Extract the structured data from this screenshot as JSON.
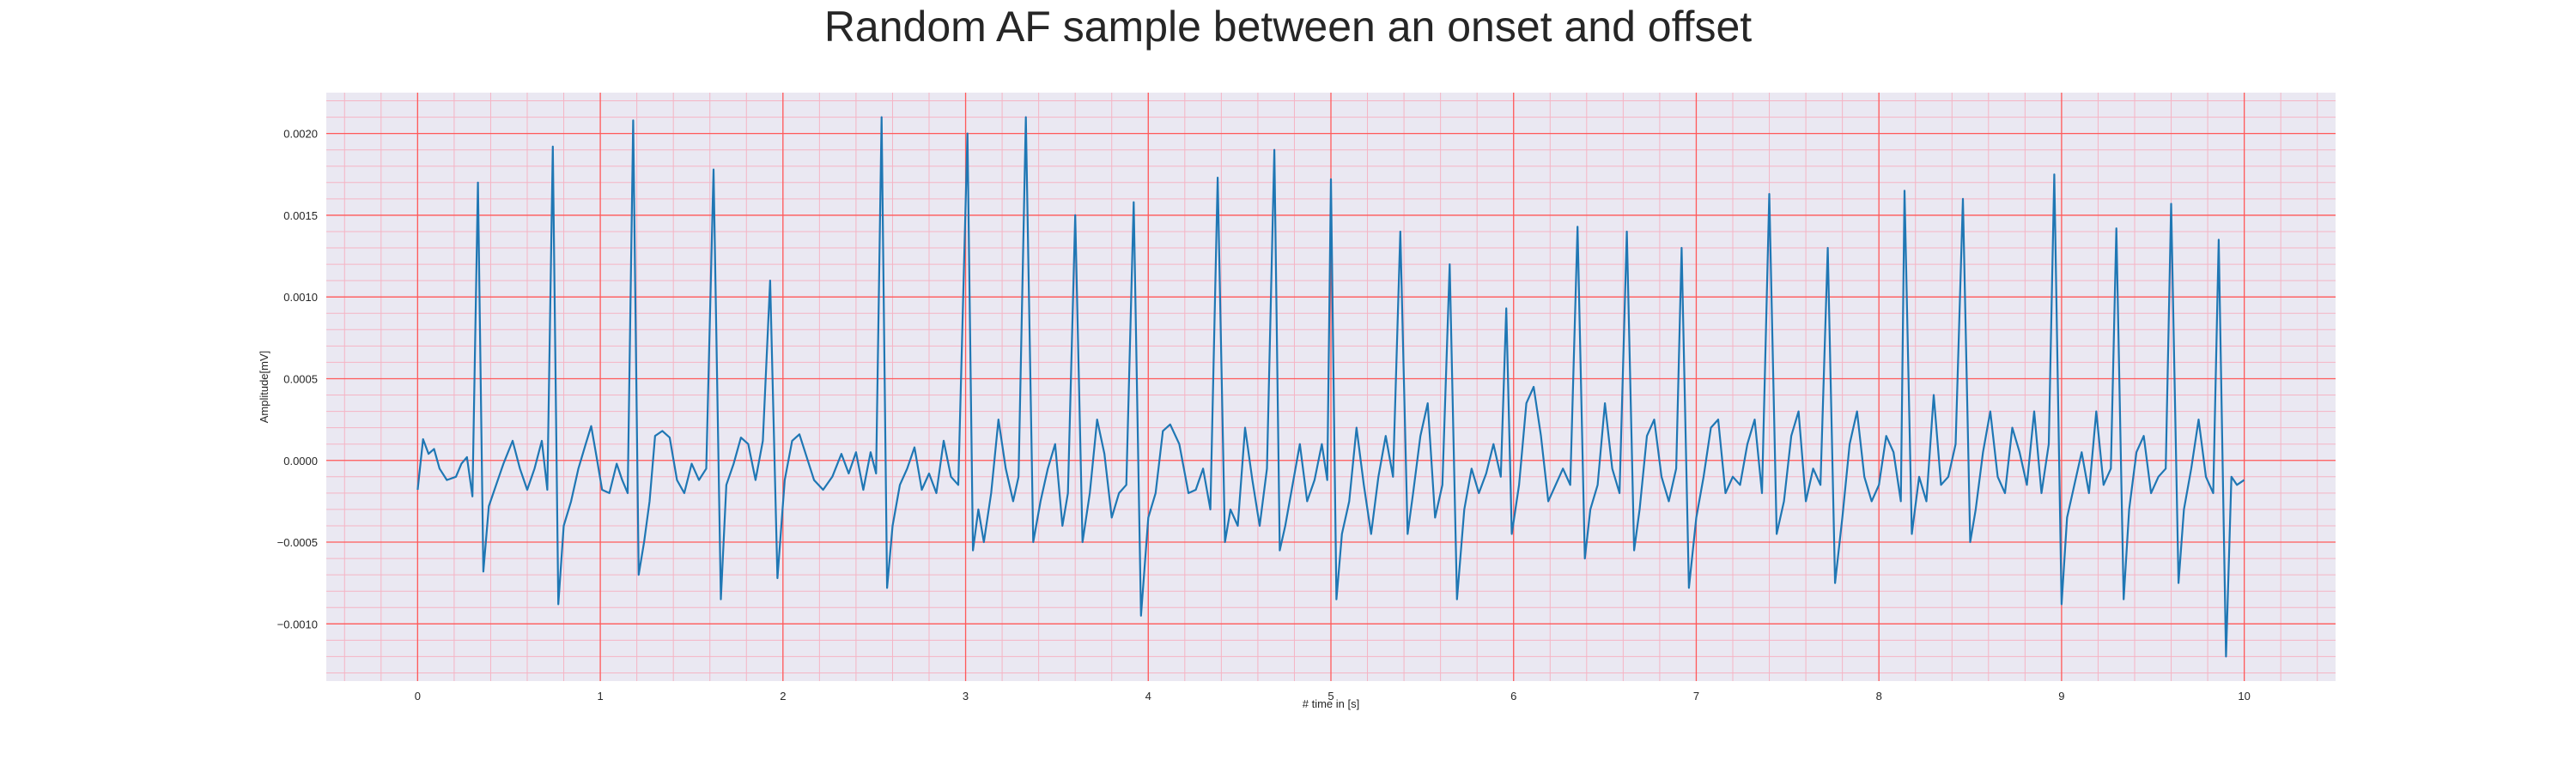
{
  "chart_data": {
    "type": "line",
    "title": "Random AF sample between an onset and offset",
    "xlabel": "# time in [s]",
    "ylabel": "Amplitude[mV]",
    "xlim": [
      -0.5,
      10.5
    ],
    "ylim": [
      -0.00135,
      0.00225
    ],
    "xticks": [
      0,
      1,
      2,
      3,
      4,
      5,
      6,
      7,
      8,
      9,
      10
    ],
    "xtick_labels": [
      "0",
      "1",
      "2",
      "3",
      "4",
      "5",
      "6",
      "7",
      "8",
      "9",
      "10"
    ],
    "yticks": [
      0.002,
      0.0015,
      0.001,
      0.0005,
      0.0,
      -0.0005,
      -0.001
    ],
    "ytick_labels": [
      "0.0020",
      "0.0015",
      "0.0010",
      "0.0005",
      "0.0000",
      "−0.0005",
      "−0.0010"
    ],
    "grid": true,
    "grid_major_color": "#ff5a5a",
    "grid_minor_color": "#f5b4c4",
    "background_color": "#eae8f2",
    "series": [
      {
        "color": "#1f77b4",
        "points": [
          [
            0.0,
            -0.00018
          ],
          [
            0.03,
            0.00013
          ],
          [
            0.06,
            4e-05
          ],
          [
            0.09,
            7e-05
          ],
          [
            0.12,
            -5e-05
          ],
          [
            0.16,
            -0.00012
          ],
          [
            0.21,
            -0.0001
          ],
          [
            0.24,
            -2e-05
          ],
          [
            0.27,
            2e-05
          ],
          [
            0.3,
            -0.00022
          ],
          [
            0.33,
            0.0017
          ],
          [
            0.36,
            -0.00068
          ],
          [
            0.39,
            -0.00028
          ],
          [
            0.43,
            -0.00015
          ],
          [
            0.47,
            -2e-05
          ],
          [
            0.52,
            0.00012
          ],
          [
            0.56,
            -5e-05
          ],
          [
            0.6,
            -0.00018
          ],
          [
            0.64,
            -5e-05
          ],
          [
            0.68,
            0.00012
          ],
          [
            0.71,
            -0.00018
          ],
          [
            0.74,
            0.00192
          ],
          [
            0.77,
            -0.00088
          ],
          [
            0.8,
            -0.0004
          ],
          [
            0.84,
            -0.00025
          ],
          [
            0.88,
            -5e-05
          ],
          [
            0.92,
            0.0001
          ],
          [
            0.95,
            0.00021
          ],
          [
            0.98,
            2e-05
          ],
          [
            1.01,
            -0.00018
          ],
          [
            1.05,
            -0.0002
          ],
          [
            1.09,
            -2e-05
          ],
          [
            1.12,
            -0.00012
          ],
          [
            1.15,
            -0.0002
          ],
          [
            1.18,
            0.00208
          ],
          [
            1.21,
            -0.0007
          ],
          [
            1.24,
            -0.0005
          ],
          [
            1.27,
            -0.00025
          ],
          [
            1.3,
            0.00015
          ],
          [
            1.34,
            0.00018
          ],
          [
            1.38,
            0.00014
          ],
          [
            1.42,
            -0.00012
          ],
          [
            1.46,
            -0.0002
          ],
          [
            1.5,
            -2e-05
          ],
          [
            1.54,
            -0.00012
          ],
          [
            1.58,
            -5e-05
          ],
          [
            1.62,
            0.00178
          ],
          [
            1.66,
            -0.00085
          ],
          [
            1.69,
            -0.00015
          ],
          [
            1.73,
            -2e-05
          ],
          [
            1.77,
            0.00014
          ],
          [
            1.81,
            0.0001
          ],
          [
            1.85,
            -0.00012
          ],
          [
            1.89,
            0.00012
          ],
          [
            1.93,
            0.0011
          ],
          [
            1.97,
            -0.00072
          ],
          [
            2.01,
            -0.00012
          ],
          [
            2.05,
            0.00012
          ],
          [
            2.09,
            0.00016
          ],
          [
            2.13,
            2e-05
          ],
          [
            2.17,
            -0.00012
          ],
          [
            2.22,
            -0.00018
          ],
          [
            2.27,
            -0.0001
          ],
          [
            2.32,
            4e-05
          ],
          [
            2.36,
            -8e-05
          ],
          [
            2.4,
            5e-05
          ],
          [
            2.44,
            -0.00018
          ],
          [
            2.48,
            5e-05
          ],
          [
            2.51,
            -8e-05
          ],
          [
            2.54,
            0.0021
          ],
          [
            2.57,
            -0.00078
          ],
          [
            2.6,
            -0.0004
          ],
          [
            2.64,
            -0.00015
          ],
          [
            2.68,
            -5e-05
          ],
          [
            2.72,
            8e-05
          ],
          [
            2.76,
            -0.00018
          ],
          [
            2.8,
            -8e-05
          ],
          [
            2.84,
            -0.0002
          ],
          [
            2.88,
            0.00012
          ],
          [
            2.92,
            -0.0001
          ],
          [
            2.96,
            -0.00015
          ],
          [
            3.01,
            0.002
          ],
          [
            3.04,
            -0.00055
          ],
          [
            3.07,
            -0.0003
          ],
          [
            3.1,
            -0.0005
          ],
          [
            3.14,
            -0.0002
          ],
          [
            3.18,
            0.00025
          ],
          [
            3.22,
            -5e-05
          ],
          [
            3.26,
            -0.00025
          ],
          [
            3.29,
            -0.0001
          ],
          [
            3.33,
            0.0021
          ],
          [
            3.37,
            -0.0005
          ],
          [
            3.41,
            -0.00025
          ],
          [
            3.45,
            -5e-05
          ],
          [
            3.49,
            0.0001
          ],
          [
            3.53,
            -0.0004
          ],
          [
            3.56,
            -0.0002
          ],
          [
            3.6,
            0.0015
          ],
          [
            3.64,
            -0.0005
          ],
          [
            3.68,
            -0.0002
          ],
          [
            3.72,
            0.00025
          ],
          [
            3.76,
            4e-05
          ],
          [
            3.8,
            -0.00035
          ],
          [
            3.84,
            -0.0002
          ],
          [
            3.88,
            -0.00015
          ],
          [
            3.92,
            0.00158
          ],
          [
            3.96,
            -0.00095
          ],
          [
            4.0,
            -0.00035
          ],
          [
            4.04,
            -0.0002
          ],
          [
            4.08,
            0.00018
          ],
          [
            4.12,
            0.00022
          ],
          [
            4.17,
            0.0001
          ],
          [
            4.22,
            -0.0002
          ],
          [
            4.26,
            -0.00018
          ],
          [
            4.3,
            -5e-05
          ],
          [
            4.34,
            -0.0003
          ],
          [
            4.38,
            0.00173
          ],
          [
            4.42,
            -0.0005
          ],
          [
            4.45,
            -0.0003
          ],
          [
            4.49,
            -0.0004
          ],
          [
            4.53,
            0.0002
          ],
          [
            4.57,
            -0.00012
          ],
          [
            4.61,
            -0.0004
          ],
          [
            4.65,
            -5e-05
          ],
          [
            4.69,
            0.0019
          ],
          [
            4.72,
            -0.00055
          ],
          [
            4.75,
            -0.0004
          ],
          [
            4.79,
            -0.00015
          ],
          [
            4.83,
            0.0001
          ],
          [
            4.87,
            -0.00025
          ],
          [
            4.91,
            -0.00012
          ],
          [
            4.95,
            0.0001
          ],
          [
            4.98,
            -0.00012
          ],
          [
            5.0,
            0.00172
          ],
          [
            5.03,
            -0.00085
          ],
          [
            5.06,
            -0.00045
          ],
          [
            5.1,
            -0.00025
          ],
          [
            5.14,
            0.0002
          ],
          [
            5.18,
            -0.00015
          ],
          [
            5.22,
            -0.00045
          ],
          [
            5.26,
            -0.0001
          ],
          [
            5.3,
            0.00015
          ],
          [
            5.34,
            -0.0001
          ],
          [
            5.38,
            0.0014
          ],
          [
            5.42,
            -0.00045
          ],
          [
            5.45,
            -0.0002
          ],
          [
            5.49,
            0.00015
          ],
          [
            5.53,
            0.00035
          ],
          [
            5.57,
            -0.00035
          ],
          [
            5.61,
            -0.00015
          ],
          [
            5.65,
            0.0012
          ],
          [
            5.69,
            -0.00085
          ],
          [
            5.73,
            -0.0003
          ],
          [
            5.77,
            -5e-05
          ],
          [
            5.81,
            -0.0002
          ],
          [
            5.85,
            -8e-05
          ],
          [
            5.89,
            0.0001
          ],
          [
            5.93,
            -0.0001
          ],
          [
            5.96,
            0.00093
          ],
          [
            5.99,
            -0.00045
          ],
          [
            6.03,
            -0.00015
          ],
          [
            6.07,
            0.00035
          ],
          [
            6.11,
            0.00045
          ],
          [
            6.15,
            0.00015
          ],
          [
            6.19,
            -0.00025
          ],
          [
            6.23,
            -0.00015
          ],
          [
            6.27,
            -5e-05
          ],
          [
            6.31,
            -0.00015
          ],
          [
            6.35,
            0.00143
          ],
          [
            6.39,
            -0.0006
          ],
          [
            6.42,
            -0.0003
          ],
          [
            6.46,
            -0.00015
          ],
          [
            6.5,
            0.00035
          ],
          [
            6.54,
            -5e-05
          ],
          [
            6.58,
            -0.0002
          ],
          [
            6.62,
            0.0014
          ],
          [
            6.66,
            -0.00055
          ],
          [
            6.69,
            -0.0003
          ],
          [
            6.73,
            0.00015
          ],
          [
            6.77,
            0.00025
          ],
          [
            6.81,
            -0.0001
          ],
          [
            6.85,
            -0.00025
          ],
          [
            6.89,
            -5e-05
          ],
          [
            6.92,
            0.0013
          ],
          [
            6.96,
            -0.00078
          ],
          [
            7.0,
            -0.00035
          ],
          [
            7.04,
            -0.0001
          ],
          [
            7.08,
            0.0002
          ],
          [
            7.12,
            0.00025
          ],
          [
            7.16,
            -0.0002
          ],
          [
            7.2,
            -0.0001
          ],
          [
            7.24,
            -0.00015
          ],
          [
            7.28,
            0.0001
          ],
          [
            7.32,
            0.00025
          ],
          [
            7.36,
            -0.0002
          ],
          [
            7.4,
            0.00163
          ],
          [
            7.44,
            -0.00045
          ],
          [
            7.48,
            -0.00025
          ],
          [
            7.52,
            0.00015
          ],
          [
            7.56,
            0.0003
          ],
          [
            7.6,
            -0.00025
          ],
          [
            7.64,
            -5e-05
          ],
          [
            7.68,
            -0.00015
          ],
          [
            7.72,
            0.0013
          ],
          [
            7.76,
            -0.00075
          ],
          [
            7.8,
            -0.00035
          ],
          [
            7.84,
            0.0001
          ],
          [
            7.88,
            0.0003
          ],
          [
            7.92,
            -0.0001
          ],
          [
            7.96,
            -0.00025
          ],
          [
            8.0,
            -0.00015
          ],
          [
            8.04,
            0.00015
          ],
          [
            8.08,
            5e-05
          ],
          [
            8.12,
            -0.00025
          ],
          [
            8.14,
            0.00165
          ],
          [
            8.18,
            -0.00045
          ],
          [
            8.22,
            -0.0001
          ],
          [
            8.26,
            -0.00025
          ],
          [
            8.3,
            0.0004
          ],
          [
            8.34,
            -0.00015
          ],
          [
            8.38,
            -0.0001
          ],
          [
            8.42,
            0.0001
          ],
          [
            8.46,
            0.0016
          ],
          [
            8.5,
            -0.0005
          ],
          [
            8.53,
            -0.0003
          ],
          [
            8.57,
            5e-05
          ],
          [
            8.61,
            0.0003
          ],
          [
            8.65,
            -0.0001
          ],
          [
            8.69,
            -0.0002
          ],
          [
            8.73,
            0.0002
          ],
          [
            8.77,
            5e-05
          ],
          [
            8.81,
            -0.00015
          ],
          [
            8.85,
            0.0003
          ],
          [
            8.89,
            -0.0002
          ],
          [
            8.93,
            0.0001
          ],
          [
            8.96,
            0.00175
          ],
          [
            9.0,
            -0.00088
          ],
          [
            9.03,
            -0.00035
          ],
          [
            9.07,
            -0.00015
          ],
          [
            9.11,
            5e-05
          ],
          [
            9.15,
            -0.0002
          ],
          [
            9.19,
            0.0003
          ],
          [
            9.23,
            -0.00015
          ],
          [
            9.27,
            -5e-05
          ],
          [
            9.3,
            0.00142
          ],
          [
            9.34,
            -0.00085
          ],
          [
            9.37,
            -0.0003
          ],
          [
            9.41,
            5e-05
          ],
          [
            9.45,
            0.00015
          ],
          [
            9.49,
            -0.0002
          ],
          [
            9.53,
            -0.0001
          ],
          [
            9.57,
            -5e-05
          ],
          [
            9.6,
            0.00157
          ],
          [
            9.64,
            -0.00075
          ],
          [
            9.67,
            -0.0003
          ],
          [
            9.71,
            -5e-05
          ],
          [
            9.75,
            0.00025
          ],
          [
            9.79,
            -0.0001
          ],
          [
            9.83,
            -0.0002
          ],
          [
            9.86,
            0.00135
          ],
          [
            9.9,
            -0.0012
          ],
          [
            9.93,
            -0.0001
          ],
          [
            9.96,
            -0.00015
          ],
          [
            10.0,
            -0.00012
          ]
        ]
      }
    ]
  }
}
